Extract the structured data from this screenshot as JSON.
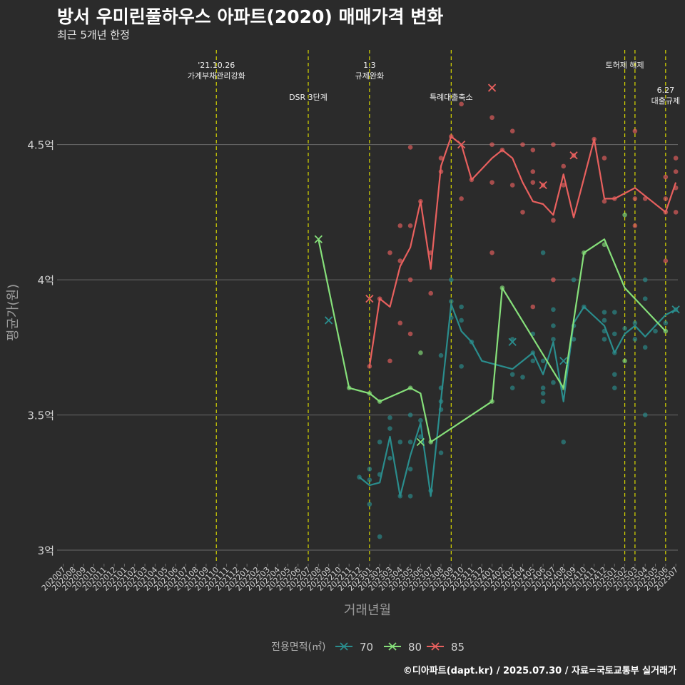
{
  "title": "방서 우미린풀하우스 아파트(2020) 매매가격 변화",
  "subtitle": "최근 5개년 한정",
  "credit": "©디아파트(dapt.kr) / 2025.07.30 / 자료=국토교통부 실거래가",
  "colors": {
    "s70": "#2a8d8d",
    "s80": "#86e07a",
    "s85": "#e8605e",
    "vline": "#d8d800",
    "grid": "#6a6a6a",
    "text": "#d0d0d0"
  },
  "chart_data": {
    "type": "line",
    "xlabel": "거래년월",
    "ylabel": "평균가(원)",
    "ylim": [
      2.95,
      4.85
    ],
    "yticks": [
      {
        "v": 3,
        "label": "3억"
      },
      {
        "v": 3.5,
        "label": "3.5억"
      },
      {
        "v": 4,
        "label": "4억"
      },
      {
        "v": 4.5,
        "label": "4.5억"
      }
    ],
    "categories": [
      "202007",
      "202008",
      "202009",
      "202010",
      "202011",
      "202012",
      "202101",
      "202102",
      "202103",
      "202104",
      "202105",
      "202106",
      "202107",
      "202108",
      "202109",
      "202110",
      "202111",
      "202112",
      "202201",
      "202202",
      "202203",
      "202204",
      "202205",
      "202206",
      "202207",
      "202208",
      "202209",
      "202210",
      "202211",
      "202212",
      "202301",
      "202302",
      "202303",
      "202304",
      "202305",
      "202306",
      "202307",
      "202308",
      "202309",
      "202310",
      "202311",
      "202312",
      "202401",
      "202402",
      "202403",
      "202404",
      "202405",
      "202406",
      "202407",
      "202408",
      "202409",
      "202410",
      "202411",
      "202412",
      "202501",
      "202502",
      "202503",
      "202504",
      "202505",
      "202506",
      "202507"
    ],
    "legend": {
      "title": "전용면적(㎡)",
      "position": "bottom"
    },
    "events": [
      {
        "x": "202110",
        "lines": [
          "'21.10.26",
          "가계부채관리강화"
        ],
        "row": 0
      },
      {
        "x": "202207",
        "lines": [
          "DSR 3단계"
        ],
        "row": 1
      },
      {
        "x": "202301",
        "lines": [
          "1.3",
          "규제완화"
        ],
        "row": 0
      },
      {
        "x": "202309",
        "lines": [
          "특례대출축소"
        ],
        "row": 1
      },
      {
        "x": "202502",
        "lines": [
          "토허제 해제"
        ],
        "row": 0
      },
      {
        "x": "202503",
        "lines": [],
        "row": 0
      },
      {
        "x": "202506",
        "lines": [
          "6.27",
          "대출규제"
        ],
        "row": 2
      }
    ],
    "series": [
      {
        "name": "70",
        "colorKey": "s70",
        "line": [
          [
            "202212",
            3.27
          ],
          [
            "202301",
            3.24
          ],
          [
            "202302",
            3.25
          ],
          [
            "202303",
            3.42
          ],
          [
            "202304",
            3.2
          ],
          [
            "202305",
            3.35
          ],
          [
            "202306",
            3.47
          ],
          [
            "202307",
            3.2
          ],
          [
            "202309",
            3.91
          ],
          [
            "202310",
            3.81
          ],
          [
            "202311",
            3.77
          ],
          [
            "202312",
            3.7
          ],
          [
            "202403",
            3.67
          ],
          [
            "202405",
            3.73
          ],
          [
            "202406",
            3.65
          ],
          [
            "202407",
            3.77
          ],
          [
            "202408",
            3.55
          ],
          [
            "202409",
            3.84
          ],
          [
            "202410",
            3.9
          ],
          [
            "202412",
            3.83
          ],
          [
            "202501",
            3.73
          ],
          [
            "202502",
            3.8
          ],
          [
            "202503",
            3.83
          ],
          [
            "202504",
            3.79
          ],
          [
            "202505",
            3.83
          ],
          [
            "202506",
            3.87
          ],
          [
            "202507",
            3.89
          ]
        ],
        "points": [
          [
            "202212",
            3.27
          ],
          [
            "202301",
            3.17
          ],
          [
            "202301",
            3.26
          ],
          [
            "202301",
            3.3
          ],
          [
            "202302",
            3.05
          ],
          [
            "202302",
            3.28
          ],
          [
            "202302",
            3.4
          ],
          [
            "202303",
            3.34
          ],
          [
            "202303",
            3.45
          ],
          [
            "202303",
            3.49
          ],
          [
            "202304",
            3.2
          ],
          [
            "202304",
            3.4
          ],
          [
            "202305",
            3.2
          ],
          [
            "202305",
            3.3
          ],
          [
            "202305",
            3.4
          ],
          [
            "202305",
            3.5
          ],
          [
            "202306",
            3.42
          ],
          [
            "202306",
            3.48
          ],
          [
            "202307",
            3.22
          ],
          [
            "202308",
            3.36
          ],
          [
            "202308",
            3.52
          ],
          [
            "202308",
            3.55
          ],
          [
            "202308",
            3.6
          ],
          [
            "202308",
            3.72
          ],
          [
            "202309",
            3.86
          ],
          [
            "202309",
            3.92
          ],
          [
            "202309",
            4.0
          ],
          [
            "202310",
            3.68
          ],
          [
            "202310",
            3.85
          ],
          [
            "202310",
            3.9
          ],
          [
            "202311",
            3.77
          ],
          [
            "202403",
            3.6
          ],
          [
            "202403",
            3.65
          ],
          [
            "202403",
            3.78
          ],
          [
            "202404",
            3.64
          ],
          [
            "202405",
            3.7
          ],
          [
            "202405",
            3.73
          ],
          [
            "202405",
            3.8
          ],
          [
            "202406",
            3.55
          ],
          [
            "202406",
            3.58
          ],
          [
            "202406",
            3.6
          ],
          [
            "202406",
            3.7
          ],
          [
            "202406",
            4.1
          ],
          [
            "202407",
            3.62
          ],
          [
            "202407",
            3.78
          ],
          [
            "202407",
            3.83
          ],
          [
            "202407",
            3.89
          ],
          [
            "202408",
            3.4
          ],
          [
            "202409",
            3.78
          ],
          [
            "202409",
            3.83
          ],
          [
            "202409",
            4.0
          ],
          [
            "202410",
            3.9
          ],
          [
            "202412",
            3.78
          ],
          [
            "202412",
            3.81
          ],
          [
            "202412",
            3.85
          ],
          [
            "202412",
            3.88
          ],
          [
            "202501",
            3.6
          ],
          [
            "202501",
            3.65
          ],
          [
            "202501",
            3.73
          ],
          [
            "202501",
            3.8
          ],
          [
            "202501",
            3.88
          ],
          [
            "202502",
            3.82
          ],
          [
            "202503",
            3.78
          ],
          [
            "202503",
            3.84
          ],
          [
            "202504",
            3.5
          ],
          [
            "202504",
            3.75
          ],
          [
            "202504",
            3.93
          ],
          [
            "202504",
            4.0
          ],
          [
            "202505",
            3.81
          ],
          [
            "202506",
            3.84
          ],
          [
            "202507",
            3.89
          ]
        ],
        "crosses": [
          [
            "202209",
            3.85
          ],
          [
            "202403",
            3.77
          ],
          [
            "202408",
            3.7
          ],
          [
            "202507",
            3.89
          ]
        ]
      },
      {
        "name": "80",
        "colorKey": "s80",
        "line": [
          [
            "202208",
            4.15
          ],
          [
            "202211",
            3.6
          ],
          [
            "202301",
            3.58
          ],
          [
            "202302",
            3.55
          ],
          [
            "202305",
            3.6
          ],
          [
            "202306",
            3.58
          ],
          [
            "202307",
            3.4
          ],
          [
            "202401",
            3.55
          ],
          [
            "202402",
            3.97
          ],
          [
            "202408",
            3.6
          ],
          [
            "202410",
            4.1
          ],
          [
            "202412",
            4.15
          ],
          [
            "202502",
            3.97
          ],
          [
            "202506",
            3.81
          ]
        ],
        "points": [
          [
            "202211",
            3.6
          ],
          [
            "202301",
            3.58
          ],
          [
            "202302",
            3.55
          ],
          [
            "202305",
            3.6
          ],
          [
            "202306",
            3.73
          ],
          [
            "202307",
            3.4
          ],
          [
            "202401",
            3.55
          ],
          [
            "202402",
            3.97
          ],
          [
            "202408",
            3.6
          ],
          [
            "202410",
            4.1
          ],
          [
            "202412",
            4.13
          ],
          [
            "202502",
            3.7
          ],
          [
            "202502",
            4.24
          ],
          [
            "202506",
            3.81
          ]
        ],
        "crosses": [
          [
            "202208",
            4.15
          ],
          [
            "202306",
            3.4
          ]
        ]
      },
      {
        "name": "85",
        "colorKey": "s85",
        "line": [
          [
            "202301",
            3.68
          ],
          [
            "202302",
            3.93
          ],
          [
            "202303",
            3.9
          ],
          [
            "202304",
            4.05
          ],
          [
            "202305",
            4.12
          ],
          [
            "202306",
            4.29
          ],
          [
            "202307",
            4.04
          ],
          [
            "202308",
            4.42
          ],
          [
            "202309",
            4.53
          ],
          [
            "202310",
            4.5
          ],
          [
            "202311",
            4.37
          ],
          [
            "202401",
            4.45
          ],
          [
            "202402",
            4.48
          ],
          [
            "202403",
            4.45
          ],
          [
            "202404",
            4.36
          ],
          [
            "202405",
            4.29
          ],
          [
            "202406",
            4.28
          ],
          [
            "202407",
            4.24
          ],
          [
            "202408",
            4.39
          ],
          [
            "202409",
            4.23
          ],
          [
            "202411",
            4.52
          ],
          [
            "202412",
            4.3
          ],
          [
            "202501",
            4.3
          ],
          [
            "202503",
            4.34
          ],
          [
            "202506",
            4.25
          ],
          [
            "202507",
            4.36
          ]
        ],
        "points": [
          [
            "202301",
            3.68
          ],
          [
            "202302",
            3.93
          ],
          [
            "202303",
            3.7
          ],
          [
            "202303",
            4.1
          ],
          [
            "202304",
            3.84
          ],
          [
            "202304",
            4.07
          ],
          [
            "202304",
            4.2
          ],
          [
            "202305",
            3.8
          ],
          [
            "202305",
            4.0
          ],
          [
            "202305",
            4.2
          ],
          [
            "202305",
            4.49
          ],
          [
            "202306",
            4.29
          ],
          [
            "202307",
            3.95
          ],
          [
            "202307",
            4.1
          ],
          [
            "202308",
            4.4
          ],
          [
            "202308",
            4.45
          ],
          [
            "202309",
            4.53
          ],
          [
            "202310",
            4.3
          ],
          [
            "202310",
            4.65
          ],
          [
            "202311",
            4.37
          ],
          [
            "202401",
            4.1
          ],
          [
            "202401",
            4.36
          ],
          [
            "202401",
            4.5
          ],
          [
            "202401",
            4.6
          ],
          [
            "202402",
            4.48
          ],
          [
            "202403",
            4.35
          ],
          [
            "202403",
            4.55
          ],
          [
            "202404",
            4.25
          ],
          [
            "202404",
            4.5
          ],
          [
            "202405",
            3.9
          ],
          [
            "202405",
            4.36
          ],
          [
            "202405",
            4.4
          ],
          [
            "202405",
            4.48
          ],
          [
            "202406",
            4.35
          ],
          [
            "202407",
            4.0
          ],
          [
            "202407",
            4.22
          ],
          [
            "202407",
            4.5
          ],
          [
            "202408",
            4.42
          ],
          [
            "202408",
            4.35
          ],
          [
            "202409",
            4.46
          ],
          [
            "202411",
            4.52
          ],
          [
            "202412",
            4.29
          ],
          [
            "202412",
            4.45
          ],
          [
            "202501",
            4.3
          ],
          [
            "202503",
            4.2
          ],
          [
            "202503",
            4.3
          ],
          [
            "202503",
            4.55
          ],
          [
            "202504",
            4.3
          ],
          [
            "202506",
            4.07
          ],
          [
            "202506",
            4.25
          ],
          [
            "202506",
            4.3
          ],
          [
            "202506",
            4.38
          ],
          [
            "202507",
            4.25
          ],
          [
            "202507",
            4.34
          ],
          [
            "202507",
            4.4
          ],
          [
            "202507",
            4.45
          ]
        ],
        "crosses": [
          [
            "202301",
            3.93
          ],
          [
            "202310",
            4.5
          ],
          [
            "202401",
            4.71
          ],
          [
            "202406",
            4.35
          ],
          [
            "202409",
            4.46
          ]
        ]
      }
    ]
  }
}
